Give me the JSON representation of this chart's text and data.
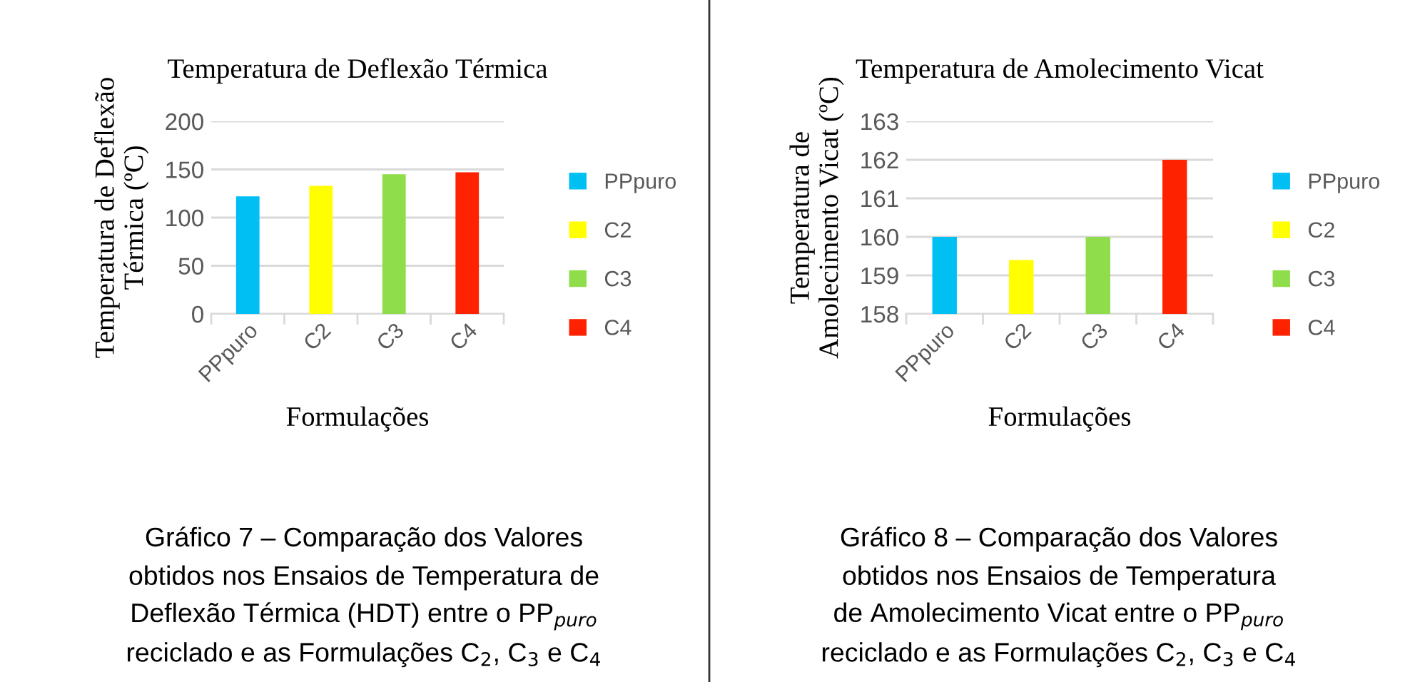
{
  "chart_data": [
    {
      "type": "bar",
      "title": "Temperatura de Deflexão Térmica",
      "xlabel": "Formulações",
      "ylabel": "Temperatura de Deflexão\nTérmica (ºC)",
      "categories": [
        "PPpuro",
        "C2",
        "C3",
        "C4"
      ],
      "series": [
        {
          "name": "PPpuro",
          "color": "#00bff3",
          "values": [
            122,
            null,
            null,
            null
          ]
        },
        {
          "name": "C2",
          "color": "#ffff00",
          "values": [
            null,
            133,
            null,
            null
          ]
        },
        {
          "name": "C3",
          "color": "#8fdd4a",
          "values": [
            null,
            null,
            145,
            null
          ]
        },
        {
          "name": "C4",
          "color": "#ff2200",
          "values": [
            null,
            null,
            null,
            147
          ]
        }
      ],
      "ylim": [
        0,
        200
      ],
      "yticks": [
        0,
        50,
        100,
        150,
        200
      ],
      "grid": "y",
      "legend": "right",
      "annotations": [
        "Gráfico 7 – Comparação dos Valores",
        "obtidos nos Ensaios de Temperatura de",
        "Deflexão Térmica (HDT) entre o PP$_{puro}$",
        "reciclado e as Formulações C$_{2}$, C$_{3}$ e C$_{4}$"
      ]
    },
    {
      "type": "bar",
      "title": "Temperatura de Amolecimento Vicat",
      "xlabel": "Formulações",
      "ylabel": "Temperatura de\nAmolecimento Vicat (ºC)",
      "categories": [
        "PPpuro",
        "C2",
        "C3",
        "C4"
      ],
      "series": [
        {
          "name": "PPpuro",
          "color": "#00bff3",
          "values": [
            160,
            null,
            null,
            null
          ]
        },
        {
          "name": "C2",
          "color": "#ffff00",
          "values": [
            null,
            159.4,
            null,
            null
          ]
        },
        {
          "name": "C3",
          "color": "#8fdd4a",
          "values": [
            null,
            null,
            160,
            null
          ]
        },
        {
          "name": "C4",
          "color": "#ff2200",
          "values": [
            null,
            null,
            null,
            162
          ]
        }
      ],
      "ylim": [
        158,
        163
      ],
      "yticks": [
        158,
        159,
        160,
        161,
        162,
        163
      ],
      "grid": "y",
      "legend": "right",
      "annotations": [
        "Gráfico 8 – Comparação dos Valores",
        "obtidos nos Ensaios de Temperatura",
        "de Amolecimento Vicat entre o PP$_{puro}$",
        "reciclado e as Formulações C$_{2}$, C$_{3}$ e C$_{4}$"
      ]
    }
  ]
}
